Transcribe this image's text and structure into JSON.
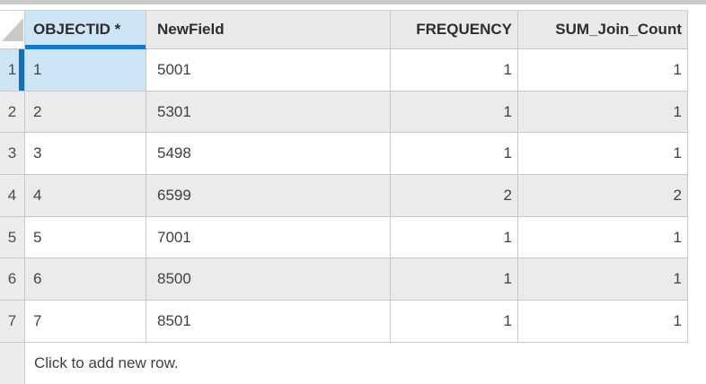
{
  "app": {
    "name": "attribute-table-view"
  },
  "colors": {
    "accent_blue_underline": "#1477c8",
    "selection_fill": "#cee5f6",
    "selection_bar": "#1170b8",
    "header_bg": "#eaeaea",
    "row_alt_bg": "#ebebeb",
    "row_header_bg": "#ececec",
    "grid_line": "#c8c8c8",
    "top_strip": "#c9c9c9",
    "text": "#3f3f3f"
  },
  "table": {
    "corner_icon": "select-all-triangle",
    "columns": [
      {
        "label": "OBJECTID *",
        "align": "left",
        "sorted_active": true
      },
      {
        "label": "NewField",
        "align": "left"
      },
      {
        "label": "FREQUENCY",
        "align": "right"
      },
      {
        "label": "SUM_Join_Count",
        "align": "right"
      }
    ],
    "rows": [
      {
        "n": "1",
        "objectid": "1",
        "newfield": "5001",
        "frequency": "1",
        "sum_join_count": "1",
        "active_cell": "objectid"
      },
      {
        "n": "2",
        "objectid": "2",
        "newfield": "5301",
        "frequency": "1",
        "sum_join_count": "1"
      },
      {
        "n": "3",
        "objectid": "3",
        "newfield": "5498",
        "frequency": "1",
        "sum_join_count": "1"
      },
      {
        "n": "4",
        "objectid": "4",
        "newfield": "6599",
        "frequency": "2",
        "sum_join_count": "2"
      },
      {
        "n": "5",
        "objectid": "5",
        "newfield": "7001",
        "frequency": "1",
        "sum_join_count": "1"
      },
      {
        "n": "6",
        "objectid": "6",
        "newfield": "8500",
        "frequency": "1",
        "sum_join_count": "1"
      },
      {
        "n": "7",
        "objectid": "7",
        "newfield": "8501",
        "frequency": "1",
        "sum_join_count": "1"
      }
    ],
    "add_row_label": "Click to add new row."
  }
}
